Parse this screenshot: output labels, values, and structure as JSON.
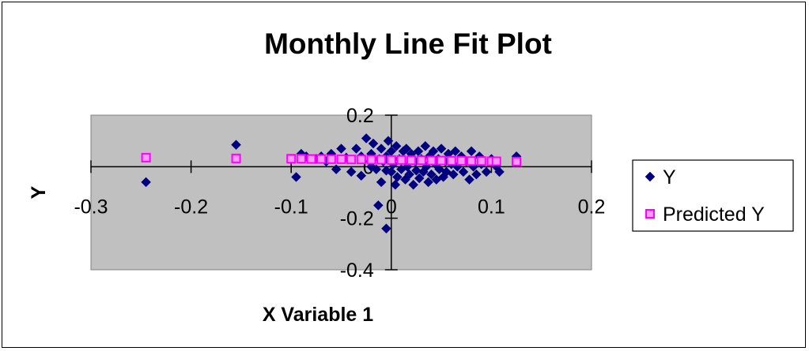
{
  "chart_data": {
    "type": "scatter",
    "title": "Monthly Line Fit  Plot",
    "xlabel": "X Variable 1",
    "ylabel": "Y",
    "xlim": [
      -0.3,
      0.2
    ],
    "ylim": [
      -0.4,
      0.2
    ],
    "x_ticks": [
      "-0.3",
      "-0.2",
      "-0.1",
      "0",
      "0.1",
      "0.2"
    ],
    "y_ticks": [
      "0.2",
      "0",
      "-0.2",
      "-0.4"
    ],
    "grid": false,
    "plot_background": "#c0c0c0",
    "legend_position": "right",
    "series": [
      {
        "name": "Y",
        "marker": "diamond",
        "color": "#000080",
        "points": [
          [
            -0.245,
            -0.06
          ],
          [
            -0.155,
            0.085
          ],
          [
            -0.095,
            -0.04
          ],
          [
            -0.09,
            0.05
          ],
          [
            -0.085,
            0.04
          ],
          [
            -0.075,
            0.03
          ],
          [
            -0.07,
            0.04
          ],
          [
            -0.065,
            0.02
          ],
          [
            -0.06,
            0.05
          ],
          [
            -0.055,
            -0.01
          ],
          [
            -0.05,
            0.07
          ],
          [
            -0.045,
            0.035
          ],
          [
            -0.04,
            -0.02
          ],
          [
            -0.035,
            0.07
          ],
          [
            -0.03,
            0.04
          ],
          [
            -0.03,
            -0.035
          ],
          [
            -0.025,
            0.11
          ],
          [
            -0.02,
            0.05
          ],
          [
            -0.02,
            0.0
          ],
          [
            -0.018,
            0.09
          ],
          [
            -0.015,
            -0.01
          ],
          [
            -0.012,
            0.03
          ],
          [
            -0.01,
            0.07
          ],
          [
            -0.01,
            -0.06
          ],
          [
            -0.008,
            0.02
          ],
          [
            -0.005,
            0.04
          ],
          [
            -0.005,
            -0.015
          ],
          [
            -0.003,
            0.1
          ],
          [
            0.0,
            0.06
          ],
          [
            0.0,
            -0.02
          ],
          [
            0.002,
            0.01
          ],
          [
            0.004,
            -0.07
          ],
          [
            0.005,
            0.08
          ],
          [
            0.006,
            -0.04
          ],
          [
            0.008,
            0.03
          ],
          [
            0.01,
            -0.01
          ],
          [
            0.012,
            0.06
          ],
          [
            0.014,
            -0.05
          ],
          [
            0.015,
            0.07
          ],
          [
            0.016,
            0.0
          ],
          [
            0.018,
            -0.03
          ],
          [
            0.02,
            0.05
          ],
          [
            0.022,
            -0.07
          ],
          [
            0.024,
            0.02
          ],
          [
            0.025,
            -0.015
          ],
          [
            0.027,
            0.06
          ],
          [
            0.028,
            -0.045
          ],
          [
            0.03,
            0.03
          ],
          [
            0.032,
            -0.02
          ],
          [
            0.034,
            0.08
          ],
          [
            0.035,
            0.0
          ],
          [
            0.037,
            -0.06
          ],
          [
            0.038,
            0.04
          ],
          [
            0.04,
            -0.03
          ],
          [
            0.042,
            0.06
          ],
          [
            0.044,
            0.01
          ],
          [
            0.045,
            -0.05
          ],
          [
            0.047,
            0.03
          ],
          [
            0.048,
            -0.01
          ],
          [
            0.05,
            0.07
          ],
          [
            0.052,
            -0.04
          ],
          [
            0.054,
            0.02
          ],
          [
            0.055,
            -0.02
          ],
          [
            0.057,
            0.05
          ],
          [
            0.06,
            0.01
          ],
          [
            0.062,
            -0.03
          ],
          [
            0.064,
            0.06
          ],
          [
            0.066,
            0.0
          ],
          [
            0.07,
            0.04
          ],
          [
            0.072,
            -0.02
          ],
          [
            0.075,
            0.02
          ],
          [
            0.078,
            -0.05
          ],
          [
            0.08,
            0.06
          ],
          [
            0.082,
            0.0
          ],
          [
            0.085,
            -0.03
          ],
          [
            0.088,
            0.04
          ],
          [
            0.09,
            0.01
          ],
          [
            0.095,
            -0.02
          ],
          [
            0.1,
            0.03
          ],
          [
            0.105,
            0.0
          ],
          [
            0.108,
            -0.02
          ],
          [
            0.125,
            0.04
          ],
          [
            -0.013,
            -0.15
          ],
          [
            -0.005,
            -0.24
          ]
        ]
      },
      {
        "name": "Predicted Y",
        "marker": "square",
        "color": "#ff00ff",
        "points": [
          [
            -0.245,
            0.035
          ],
          [
            -0.155,
            0.032
          ],
          [
            -0.1,
            0.031
          ],
          [
            -0.09,
            0.031
          ],
          [
            -0.08,
            0.03
          ],
          [
            -0.07,
            0.03
          ],
          [
            -0.06,
            0.029
          ],
          [
            -0.05,
            0.029
          ],
          [
            -0.04,
            0.028
          ],
          [
            -0.03,
            0.028
          ],
          [
            -0.02,
            0.027
          ],
          [
            -0.01,
            0.027
          ],
          [
            0.0,
            0.026
          ],
          [
            0.01,
            0.026
          ],
          [
            0.02,
            0.025
          ],
          [
            0.03,
            0.025
          ],
          [
            0.04,
            0.024
          ],
          [
            0.05,
            0.024
          ],
          [
            0.06,
            0.023
          ],
          [
            0.07,
            0.023
          ],
          [
            0.08,
            0.022
          ],
          [
            0.09,
            0.022
          ],
          [
            0.1,
            0.021
          ],
          [
            0.105,
            0.021
          ],
          [
            0.125,
            0.02
          ]
        ]
      }
    ]
  }
}
